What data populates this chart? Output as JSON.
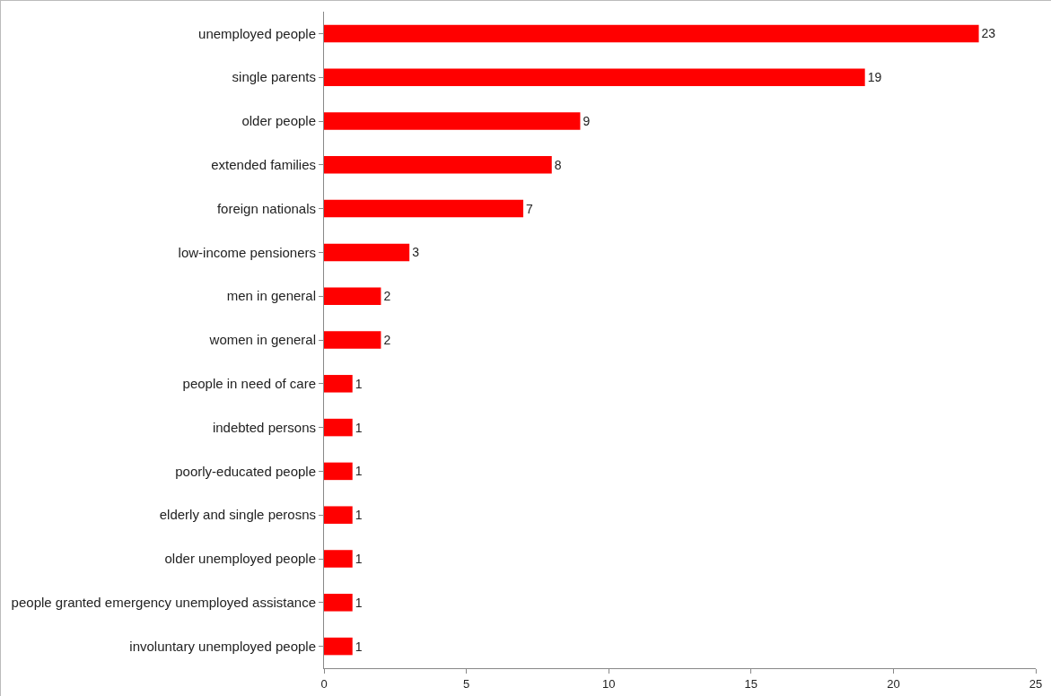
{
  "chart_data": {
    "type": "bar",
    "orientation": "horizontal",
    "categories": [
      "unemployed people",
      "single parents",
      "older people",
      "extended families",
      "foreign nationals",
      "low-income pensioners",
      "men in general",
      "women in general",
      "people in need of care",
      "indebted persons",
      "poorly-educated people",
      "elderly and single perosns",
      "older unemployed people",
      "people granted emergency unemployed assistance",
      "involuntary unemployed people"
    ],
    "values": [
      23,
      19,
      9,
      8,
      7,
      3,
      2,
      2,
      1,
      1,
      1,
      1,
      1,
      1,
      1
    ],
    "color": "#ff0000",
    "xlim": [
      0,
      25
    ],
    "xticks": [
      0,
      5,
      10,
      15,
      20,
      25
    ],
    "data_labels": true,
    "grid": false,
    "legend": false
  }
}
